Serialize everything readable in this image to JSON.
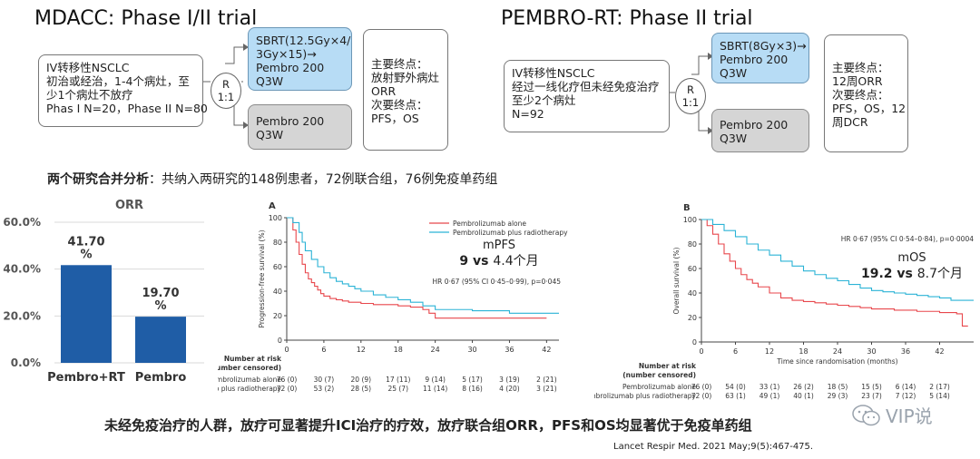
{
  "trials": {
    "left": {
      "title": "MDACC: Phase I/II trial",
      "population": [
        "IV转移性NSCLC",
        "初治或经治，1-4个病灶，至",
        "少1个病灶不放疗",
        "Phas I N=20，Phase II N=80"
      ],
      "randomization": [
        "R",
        "1:1"
      ],
      "arm1": [
        "SBRT(12.5Gy×4/",
        "3Gy×15)→",
        "Pembro 200",
        "Q3W"
      ],
      "arm2": [
        "Pembro 200",
        "Q3W"
      ],
      "endpoints": [
        "主要终点：",
        "放射野外病灶",
        "ORR",
        "次要终点：",
        "PFS，OS"
      ]
    },
    "right": {
      "title": "PEMBRO-RT: Phase II trial",
      "population": [
        "IV转移性NSCLC",
        "经过一线化疗但未经免疫治疗",
        "至少2个病灶",
        "N=92"
      ],
      "randomization": [
        "R",
        "1:1"
      ],
      "arm1": [
        "SBRT(8Gy×3)→",
        "Pembro 200",
        "Q3W"
      ],
      "arm2": [
        "Pembro 200",
        "Q3W"
      ],
      "endpoints": [
        "主要终点：",
        "12周ORR",
        "次要终点：",
        "PFS，OS，12",
        "周DCR"
      ]
    }
  },
  "summary": {
    "label": "两个研究合并分析",
    "text": "：共纳入两研究的148例患者，72例联合组，76例免疫单药组"
  },
  "chart_data": [
    {
      "type": "bar",
      "title": "ORR",
      "categories": [
        "Pembro+RT",
        "Pembro"
      ],
      "values": [
        41.7,
        19.7
      ],
      "value_labels": [
        "41.70 %",
        "19.70 %"
      ],
      "yticks": [
        "0.0%",
        "20.0%",
        "40.0%",
        "60.0%"
      ],
      "ylim": [
        0,
        60
      ],
      "grid": true,
      "color": "#1f5da6"
    },
    {
      "type": "line",
      "panel_label": "A",
      "ylabel": "Progression-free survival (%)",
      "xlabel": "",
      "xlim": [
        0,
        44
      ],
      "ylim": [
        0,
        100
      ],
      "xticks": [
        0,
        6,
        12,
        18,
        24,
        30,
        36,
        42
      ],
      "yticks": [
        0,
        20,
        40,
        60,
        80,
        100
      ],
      "legend": [
        "Pembrolizumab alone",
        "Pembrolizumab plus radiotherapy"
      ],
      "annotation_title": "mPFS",
      "annotation_value": "9 vs 4.4个月",
      "annotation_parts": [
        "9",
        " vs ",
        "4.4个月"
      ],
      "hr_text": "HR 0·67 (95% CI 0·45–0·99), p=0·045",
      "series": [
        {
          "name": "Pembrolizumab alone",
          "color": "#e8474c",
          "x": [
            0,
            1,
            1.5,
            2,
            2.5,
            3,
            3.5,
            4,
            4.5,
            5,
            5.5,
            6,
            7,
            8,
            9,
            10,
            12,
            14,
            16,
            18,
            20,
            22,
            23,
            24,
            30,
            36,
            42
          ],
          "y": [
            100,
            90,
            80,
            70,
            62,
            55,
            50,
            47,
            44,
            41,
            38,
            36,
            34,
            33,
            32,
            31,
            30,
            29,
            29,
            28,
            27,
            25,
            22,
            18,
            18,
            18,
            18
          ]
        },
        {
          "name": "Pembrolizumab plus radiotherapy",
          "color": "#2bb3d6",
          "x": [
            0,
            1,
            2,
            2.5,
            3,
            4,
            5,
            6,
            7,
            8,
            9,
            10,
            11,
            12,
            14,
            16,
            18,
            20,
            22,
            24,
            30,
            36,
            42,
            44
          ],
          "y": [
            100,
            96,
            88,
            80,
            73,
            66,
            60,
            55,
            51,
            48,
            46,
            44,
            42,
            40,
            37,
            35,
            33,
            31,
            28,
            25,
            24,
            22,
            22,
            22
          ]
        }
      ],
      "risk_table": {
        "header": [
          "Number at risk",
          "(number censored)"
        ],
        "rows": [
          {
            "label": "Pembrolizumab alone",
            "values": [
              "76 (0)",
              "30 (7)",
              "20 (9)",
              "17 (11)",
              "9 (14)",
              "5 (17)",
              "3 (19)",
              "2 (21)"
            ]
          },
          {
            "label": "Pembrolizumab plus radiotherapy",
            "values": [
              "72 (0)",
              "53 (2)",
              "28 (5)",
              "25 (7)",
              "11 (14)",
              "8 (16)",
              "4 (20)",
              "3 (21)"
            ]
          }
        ]
      }
    },
    {
      "type": "line",
      "panel_label": "B",
      "ylabel": "Overall survival (%)",
      "xlabel": "Time since randomisation (months)",
      "xlim": [
        0,
        48
      ],
      "ylim": [
        0,
        100
      ],
      "xticks": [
        0,
        6,
        12,
        18,
        24,
        30,
        36,
        42
      ],
      "yticks": [
        0,
        20,
        40,
        60,
        80,
        100
      ],
      "annotation_title": "mOS",
      "annotation_value": "19.2 vs 8.7个月",
      "annotation_parts": [
        "19.2",
        " vs ",
        "8.7个月"
      ],
      "hr_text": "HR 0·67 (95% CI 0·54–0·84), p=0·0004",
      "series": [
        {
          "name": "Pembrolizumab alone",
          "color": "#e8474c",
          "x": [
            0,
            1,
            2,
            3,
            4,
            5,
            6,
            7,
            8,
            9,
            10,
            12,
            14,
            16,
            18,
            20,
            22,
            24,
            26,
            28,
            30,
            34,
            38,
            42,
            45,
            46,
            47
          ],
          "y": [
            100,
            95,
            88,
            80,
            72,
            66,
            60,
            55,
            51,
            48,
            45,
            40,
            36,
            34,
            33,
            32,
            31,
            30,
            29,
            28,
            27,
            26,
            25,
            24,
            23,
            13,
            13
          ]
        },
        {
          "name": "Pembrolizumab plus radiotherapy",
          "color": "#2bb3d6",
          "x": [
            0,
            2,
            4,
            6,
            8,
            10,
            12,
            14,
            16,
            18,
            20,
            22,
            24,
            26,
            28,
            30,
            32,
            34,
            36,
            38,
            40,
            42,
            44,
            46,
            48
          ],
          "y": [
            100,
            96,
            91,
            86,
            80,
            75,
            71,
            66,
            62,
            58,
            55,
            52,
            50,
            47,
            44,
            42,
            41,
            40,
            39,
            38,
            37,
            36,
            34,
            34,
            34
          ]
        }
      ],
      "risk_table": {
        "header": [
          "Number at risk",
          "(number censored)"
        ],
        "rows": [
          {
            "label": "Pembrolizumab alone",
            "values": [
              "76 (0)",
              "54 (0)",
              "33 (1)",
              "26 (2)",
              "18 (5)",
              "15 (5)",
              "6 (14)",
              "2 (17)"
            ]
          },
          {
            "label": "Pembrolizumab plus radiotherapy",
            "values": [
              "72 (0)",
              "63 (1)",
              "49 (1)",
              "40 (1)",
              "29 (3)",
              "23 (7)",
              "7 (12)",
              "5 (14)"
            ]
          }
        ]
      }
    }
  ],
  "conclusion": "未经免疫治疗的人群，放疗可显著提升ICI治疗的疗效，放疗联合组ORR，PFS和OS均显著优于免疫单药组",
  "citation": "Lancet Respir  Med. 2021 May;9(5):467-475.",
  "watermark": "VIP说",
  "icons": {
    "watermark_logo": "wechat-icon"
  }
}
